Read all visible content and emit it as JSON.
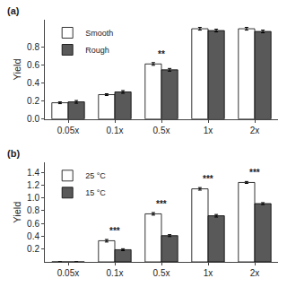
{
  "chart_data": [
    {
      "type": "bar",
      "title": "(a)",
      "categories": [
        "0.05x",
        "0.1x",
        "0.5x",
        "1x",
        "2x"
      ],
      "series": [
        {
          "name": "Smooth",
          "color": "#ffffff",
          "values": [
            0.18,
            0.27,
            0.61,
            1.0,
            1.0
          ],
          "errors": [
            0.01,
            0.01,
            0.015,
            0.015,
            0.015
          ]
        },
        {
          "name": "Rough",
          "color": "#595959",
          "values": [
            0.19,
            0.3,
            0.545,
            0.98,
            0.97
          ],
          "errors": [
            0.015,
            0.015,
            0.015,
            0.015,
            0.015
          ]
        }
      ],
      "ylabel": "Yield",
      "ylim": [
        0.0,
        1.1
      ],
      "yticks": [
        {
          "value": 0.0,
          "label": "0.0"
        },
        0.2,
        0.4,
        0.6,
        0.8
      ],
      "annotations": [
        {
          "category": "0.5x",
          "text": "**"
        }
      ],
      "legend": "upper left",
      "grid": false
    },
    {
      "type": "bar",
      "title": "(b)",
      "categories": [
        "0.05x",
        "0.1x",
        "0.5x",
        "1x",
        "2x"
      ],
      "series": [
        {
          "name": "25 °C",
          "color": "#ffffff",
          "values": [
            0.0,
            0.33,
            0.75,
            1.14,
            1.24
          ],
          "errors": [
            0.0,
            0.02,
            0.02,
            0.02,
            0.015
          ]
        },
        {
          "name": "15 °C",
          "color": "#595959",
          "values": [
            0.0,
            0.19,
            0.41,
            0.72,
            0.91
          ],
          "errors": [
            0.0,
            0.015,
            0.015,
            0.02,
            0.015
          ]
        }
      ],
      "ylabel": "Yield",
      "ylim": [
        0.0,
        1.55
      ],
      "yticks": [
        0.2,
        0.4,
        0.6,
        0.8,
        {
          "value": 1.0,
          "label": "1.0"
        },
        1.2,
        1.4
      ],
      "annotations": [
        {
          "category": "0.1x",
          "text": "***"
        },
        {
          "category": "0.5x",
          "text": "***"
        },
        {
          "category": "1x",
          "text": "***"
        },
        {
          "category": "2x",
          "text": "***"
        }
      ],
      "legend": "upper left",
      "grid": false
    }
  ]
}
